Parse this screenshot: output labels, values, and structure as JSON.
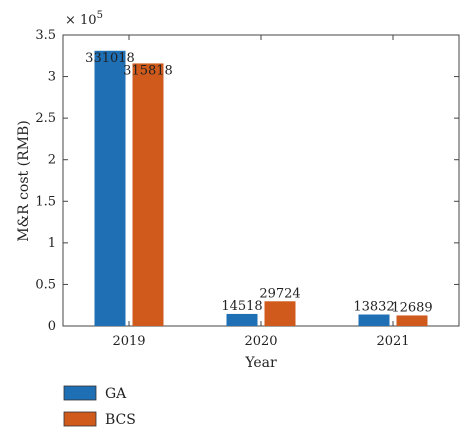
{
  "chart_data": {
    "type": "bar",
    "categories": [
      "2019",
      "2020",
      "2021"
    ],
    "series": [
      {
        "name": "GA",
        "values": [
          331018,
          14518,
          13832
        ],
        "color": "#1f6fb5"
      },
      {
        "name": "BCS",
        "values": [
          315818,
          29724,
          12689
        ],
        "color": "#d05a1c"
      }
    ],
    "data_labels": [
      [
        "331018",
        "14518",
        "13832"
      ],
      [
        "315818",
        "29724",
        "12689"
      ]
    ],
    "xlabel": "Year",
    "ylabel": "M&R cost (RMB)",
    "ylim": [
      0,
      350000
    ],
    "yticks": [
      0,
      50000,
      100000,
      150000,
      200000,
      250000,
      300000,
      350000
    ],
    "ytick_labels": [
      "0",
      "0.5",
      "1",
      "1.5",
      "2",
      "2.5",
      "3",
      "3.5"
    ],
    "y_multiplier_label": "× 10",
    "y_multiplier_exponent": "5",
    "grid": false,
    "legend_position": "below"
  }
}
